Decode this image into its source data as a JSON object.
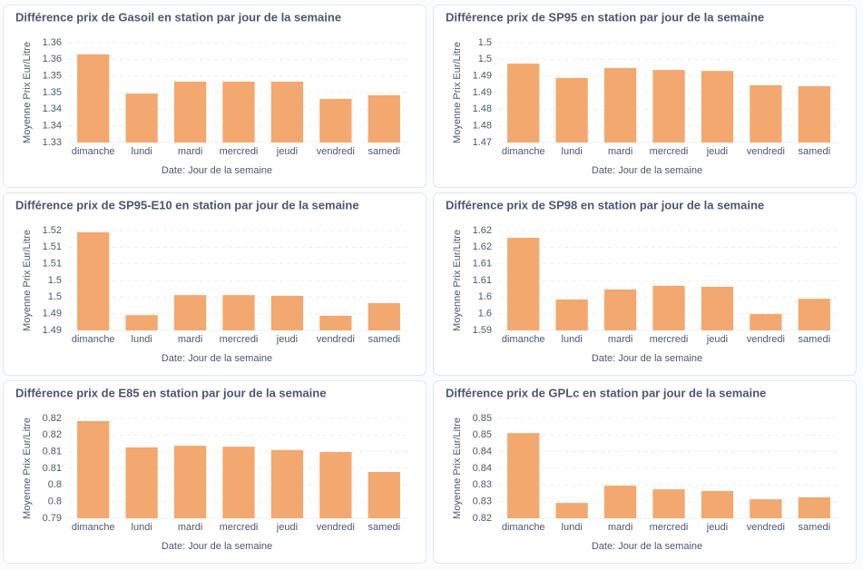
{
  "chart_data": [
    {
      "type": "bar",
      "title": "Différence prix de Gasoil en station par jour de la semaine",
      "x_label": "Date: Jour de la semaine",
      "y_label": "Moyenne Prix Eur/Litre",
      "categories": [
        "dimanche",
        "lundi",
        "mardi",
        "mercredi",
        "jeudi",
        "vendredi",
        "samedi"
      ],
      "values": [
        1.3565,
        1.3447,
        1.3483,
        1.3483,
        1.3483,
        1.3431,
        1.3442
      ],
      "color": "#f2a86f",
      "ylim": [
        1.33,
        1.36
      ],
      "yticks": [
        1.33,
        {
          "value": 1.335,
          "label": "1.34"
        },
        1.34,
        {
          "value": 1.345,
          "label": "1.35"
        },
        1.35,
        {
          "value": 1.355,
          "label": "1.36"
        },
        1.36
      ],
      "grid": true
    },
    {
      "type": "bar",
      "title": "Différence prix de SP95 en station par jour de la semaine",
      "x_label": "Date: Jour de la semaine",
      "y_label": "Moyenne Prix Eur/Litre",
      "categories": [
        "dimanche",
        "lundi",
        "mardi",
        "mercredi",
        "jeudi",
        "vendredi",
        "samedi"
      ],
      "values": [
        1.4937,
        1.4894,
        1.4924,
        1.4918,
        1.4915,
        1.4872,
        1.4869
      ],
      "color": "#f2a86f",
      "ylim": [
        1.47,
        1.5
      ],
      "yticks": [
        1.47,
        {
          "value": 1.475,
          "label": "1.48"
        },
        1.48,
        {
          "value": 1.485,
          "label": "1.49"
        },
        1.49,
        {
          "value": 1.495,
          "label": "1.5"
        },
        1.5
      ],
      "grid": true
    },
    {
      "type": "bar",
      "title": "Différence prix de SP95-E10 en station par jour de la semaine",
      "x_label": "Date: Jour de la semaine",
      "y_label": "Moyenne Prix Eur/Litre",
      "categories": [
        "dimanche",
        "lundi",
        "mardi",
        "mercredi",
        "jeudi",
        "vendredi",
        "samedi"
      ],
      "values": [
        1.5195,
        1.4946,
        1.5006,
        1.5006,
        1.5004,
        1.4944,
        1.4982
      ],
      "color": "#f2a86f",
      "ylim": [
        1.49,
        1.52
      ],
      "yticks": [
        1.49,
        {
          "value": 1.495,
          "label": "1.49"
        },
        1.5,
        {
          "value": 1.505,
          "label": "1.5"
        },
        1.51,
        {
          "value": 1.515,
          "label": "1.51"
        },
        1.52
      ],
      "grid": true
    },
    {
      "type": "bar",
      "title": "Différence prix de SP98 en station par jour de la semaine",
      "x_label": "Date: Jour de la semaine",
      "y_label": "Moyenne Prix Eur/Litre",
      "categories": [
        "dimanche",
        "lundi",
        "mardi",
        "mercredi",
        "jeudi",
        "vendredi",
        "samedi"
      ],
      "values": [
        1.6178,
        1.5993,
        1.6023,
        1.6034,
        1.6031,
        1.5949,
        1.5995
      ],
      "color": "#f2a86f",
      "ylim": [
        1.59,
        1.62
      ],
      "yticks": [
        1.59,
        {
          "value": 1.595,
          "label": "1.6"
        },
        1.6,
        {
          "value": 1.605,
          "label": "1.61"
        },
        1.61,
        {
          "value": 1.615,
          "label": "1.62"
        },
        1.62
      ],
      "grid": true
    },
    {
      "type": "bar",
      "title": "Différence prix de E85 en station par jour de la semaine",
      "x_label": "Date: Jour de la semaine",
      "y_label": "Moyenne Prix Eur/Litre",
      "categories": [
        "dimanche",
        "lundi",
        "mardi",
        "mercredi",
        "jeudi",
        "vendredi",
        "samedi"
      ],
      "values": [
        0.8192,
        0.8113,
        0.8118,
        0.8115,
        0.8105,
        0.8099,
        0.8039
      ],
      "color": "#f2a86f",
      "ylim": [
        0.79,
        0.82
      ],
      "yticks": [
        0.79,
        {
          "value": 0.795,
          "label": "0.8"
        },
        0.8,
        {
          "value": 0.805,
          "label": "0.81"
        },
        0.81,
        {
          "value": 0.815,
          "label": "0.82"
        },
        0.82
      ],
      "grid": true
    },
    {
      "type": "bar",
      "title": "Différence prix de GPLc en station par jour de la semaine",
      "x_label": "Date: Jour de la semaine",
      "y_label": "Moyenne Prix Eur/Litre",
      "categories": [
        "dimanche",
        "lundi",
        "mardi",
        "mercredi",
        "jeudi",
        "vendredi",
        "samedi"
      ],
      "values": [
        0.8456,
        0.8246,
        0.8298,
        0.8287,
        0.8282,
        0.8257,
        0.8263
      ],
      "color": "#f2a86f",
      "ylim": [
        0.82,
        0.85
      ],
      "yticks": [
        0.82,
        {
          "value": 0.825,
          "label": "0.83"
        },
        0.83,
        {
          "value": 0.835,
          "label": "0.84"
        },
        0.84,
        {
          "value": 0.845,
          "label": "0.85"
        },
        0.85
      ],
      "grid": true
    }
  ]
}
